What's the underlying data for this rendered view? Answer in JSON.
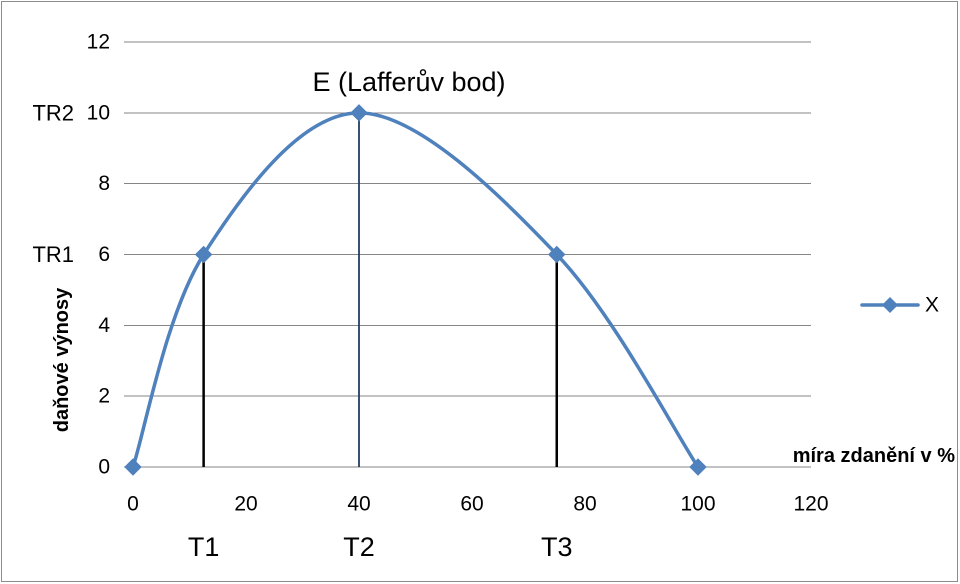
{
  "chart_data": {
    "type": "scatter",
    "smooth_line": true,
    "markers": true,
    "series": [
      {
        "name": "X",
        "color": "#4F81BD",
        "x": [
          0,
          12.5,
          40,
          75,
          100
        ],
        "y": [
          0,
          6,
          10,
          6,
          0
        ]
      }
    ],
    "xlabel": "míra zdanění v %",
    "ylabel": "daňové výnosy",
    "xlim": [
      0,
      120
    ],
    "ylim": [
      0,
      12
    ],
    "xticks": [
      0,
      20,
      40,
      60,
      80,
      100,
      120
    ],
    "yticks": [
      0,
      2,
      4,
      6,
      8,
      10,
      12
    ],
    "grid": {
      "y": true,
      "x": false,
      "color": "#868686"
    },
    "legend": "right",
    "drop_lines": [
      {
        "x": 12.5,
        "y": 6,
        "color": "#000000"
      },
      {
        "x": 40,
        "y": 10,
        "color": "#243F60"
      },
      {
        "x": 75,
        "y": 6,
        "color": "#000000"
      }
    ],
    "annotations": {
      "peak": {
        "text": "E (Lafferův bod)",
        "x": 40,
        "y": 10
      },
      "x_markers": [
        {
          "text": "T1",
          "x": 12.5
        },
        {
          "text": "T2",
          "x": 40
        },
        {
          "text": "T3",
          "x": 75
        }
      ],
      "y_markers": [
        {
          "text": "TR1",
          "y": 6
        },
        {
          "text": "TR2",
          "y": 10
        }
      ]
    }
  }
}
